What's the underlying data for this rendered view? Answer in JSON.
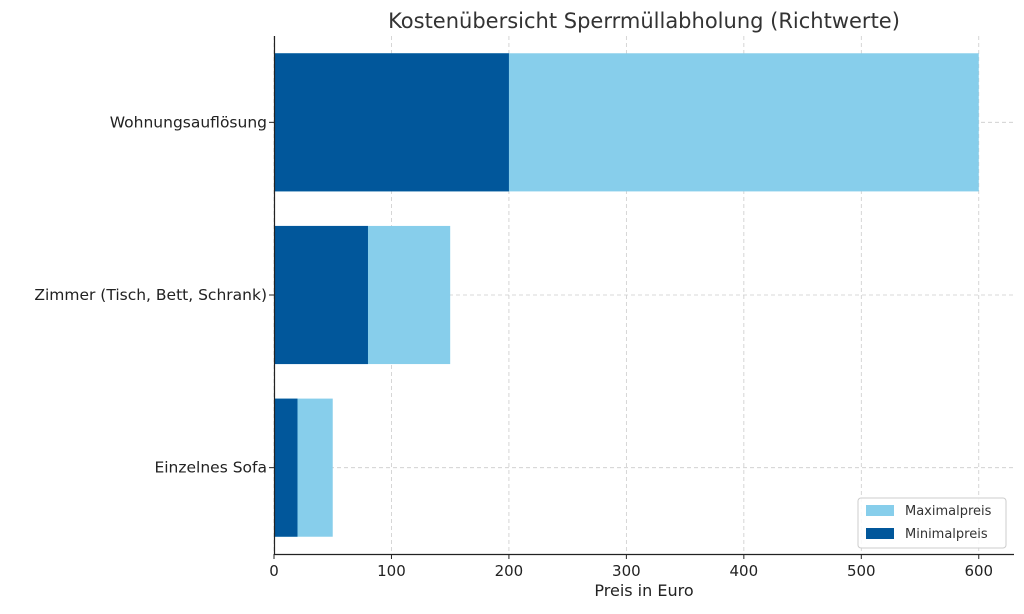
{
  "chart_data": {
    "type": "bar",
    "orientation": "horizontal",
    "stacking": "overlay",
    "title": "Kostenübersicht Sperrmüllabholung (Richtwerte)",
    "xlabel": "Preis in Euro",
    "ylabel": "",
    "categories": [
      "Einzelnes Sofa",
      "Zimmer (Tisch, Bett, Schrank)",
      "Wohnungsauflösung"
    ],
    "series": [
      {
        "name": "Maximalpreis",
        "values": [
          50,
          150,
          600
        ],
        "color": "#87CEEB"
      },
      {
        "name": "Minimalpreis",
        "values": [
          20,
          80,
          200
        ],
        "color": "#01579B"
      }
    ],
    "xlim": [
      0,
      630
    ],
    "xticks": [
      0,
      100,
      200,
      300,
      400,
      500,
      600
    ],
    "grid": true,
    "legend_position": "bottom-right"
  }
}
